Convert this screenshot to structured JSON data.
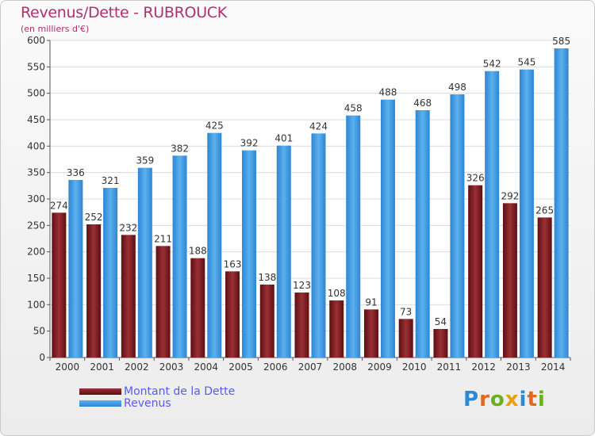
{
  "header": {
    "title": "Revenus/Dette - RUBROUCK",
    "subtitle": "(en milliers d'€)"
  },
  "chart_data": {
    "type": "bar",
    "categories": [
      "2000",
      "2001",
      "2002",
      "2003",
      "2004",
      "2005",
      "2006",
      "2007",
      "2008",
      "2009",
      "2010",
      "2011",
      "2012",
      "2013",
      "2014"
    ],
    "series": [
      {
        "name": "Montant de la Dette",
        "color": "#7a1a1a",
        "values": [
          274,
          252,
          232,
          211,
          188,
          163,
          138,
          123,
          108,
          91,
          73,
          54,
          326,
          292,
          265
        ]
      },
      {
        "name": "Revenus",
        "color": "#3a9ae0",
        "values": [
          336,
          321,
          359,
          382,
          425,
          392,
          401,
          424,
          458,
          488,
          468,
          498,
          542,
          545,
          585
        ]
      }
    ],
    "yticks": [
      0,
      50,
      100,
      150,
      200,
      250,
      300,
      350,
      400,
      450,
      500,
      550,
      600
    ],
    "ylim": [
      0,
      600
    ],
    "grid": true,
    "legend_position": "bottom-left"
  },
  "legend": [
    {
      "label": "Montant de la Dette"
    },
    {
      "label": "Revenus"
    }
  ],
  "logo": {
    "letters": [
      "P",
      "r",
      "o",
      "x",
      "i",
      "t",
      "i"
    ],
    "colors": [
      "#2a8ad8",
      "#e06820",
      "#6ab020",
      "#e8a010",
      "#2a8ad8",
      "#e06820",
      "#6ab020"
    ]
  }
}
